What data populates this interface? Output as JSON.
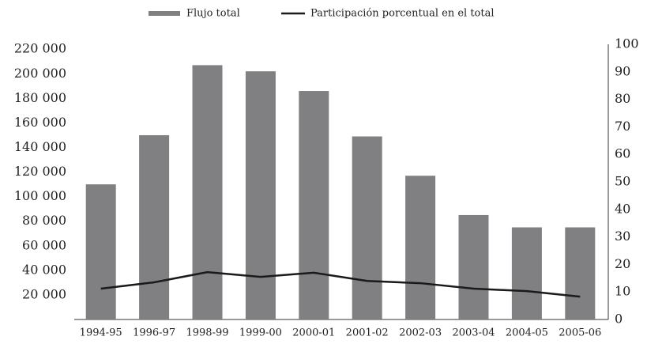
{
  "chart_data": {
    "type": "bar_line",
    "categories": [
      "1994-95",
      "1996-97",
      "1998-99",
      "1999-00",
      "2000-01",
      "2001-02",
      "2002-03",
      "2003-04",
      "2004-05",
      "2005-06"
    ],
    "series": [
      {
        "name": "Flujo total",
        "color": "#808083",
        "type": "bar",
        "values": [
          110000,
          150000,
          207000,
          202000,
          186000,
          149000,
          117000,
          85000,
          75000,
          75000
        ]
      },
      {
        "name": "Participación porcentual en el total",
        "color": "#1a1a1a",
        "type": "line",
        "axis": "y2",
        "values": [
          11.2,
          13.5,
          17.2,
          15.5,
          17,
          14,
          13.2,
          11.2,
          10.3,
          8.3
        ]
      }
    ],
    "ylim": [
      0,
      224000
    ],
    "yticks": [
      {
        "value": 20000,
        "label": "20 000"
      },
      {
        "value": 40000,
        "label": "40 000"
      },
      {
        "value": 60000,
        "label": "60 000"
      },
      {
        "value": 80000,
        "label": "80 000"
      },
      {
        "value": 100000,
        "label": "100 000"
      },
      {
        "value": 120000,
        "label": "120 000"
      },
      {
        "value": 140000,
        "label": "140 000"
      },
      {
        "value": 160000,
        "label": "160 000"
      },
      {
        "value": 180000,
        "label": "180 000"
      },
      {
        "value": 200000,
        "label": "200 000"
      },
      {
        "value": 220000,
        "label": "220 000"
      }
    ],
    "y2lim": [
      0,
      100
    ],
    "y2ticks": [
      0,
      10,
      20,
      30,
      40,
      50,
      60,
      70,
      80,
      90,
      100
    ],
    "legend": "top"
  }
}
